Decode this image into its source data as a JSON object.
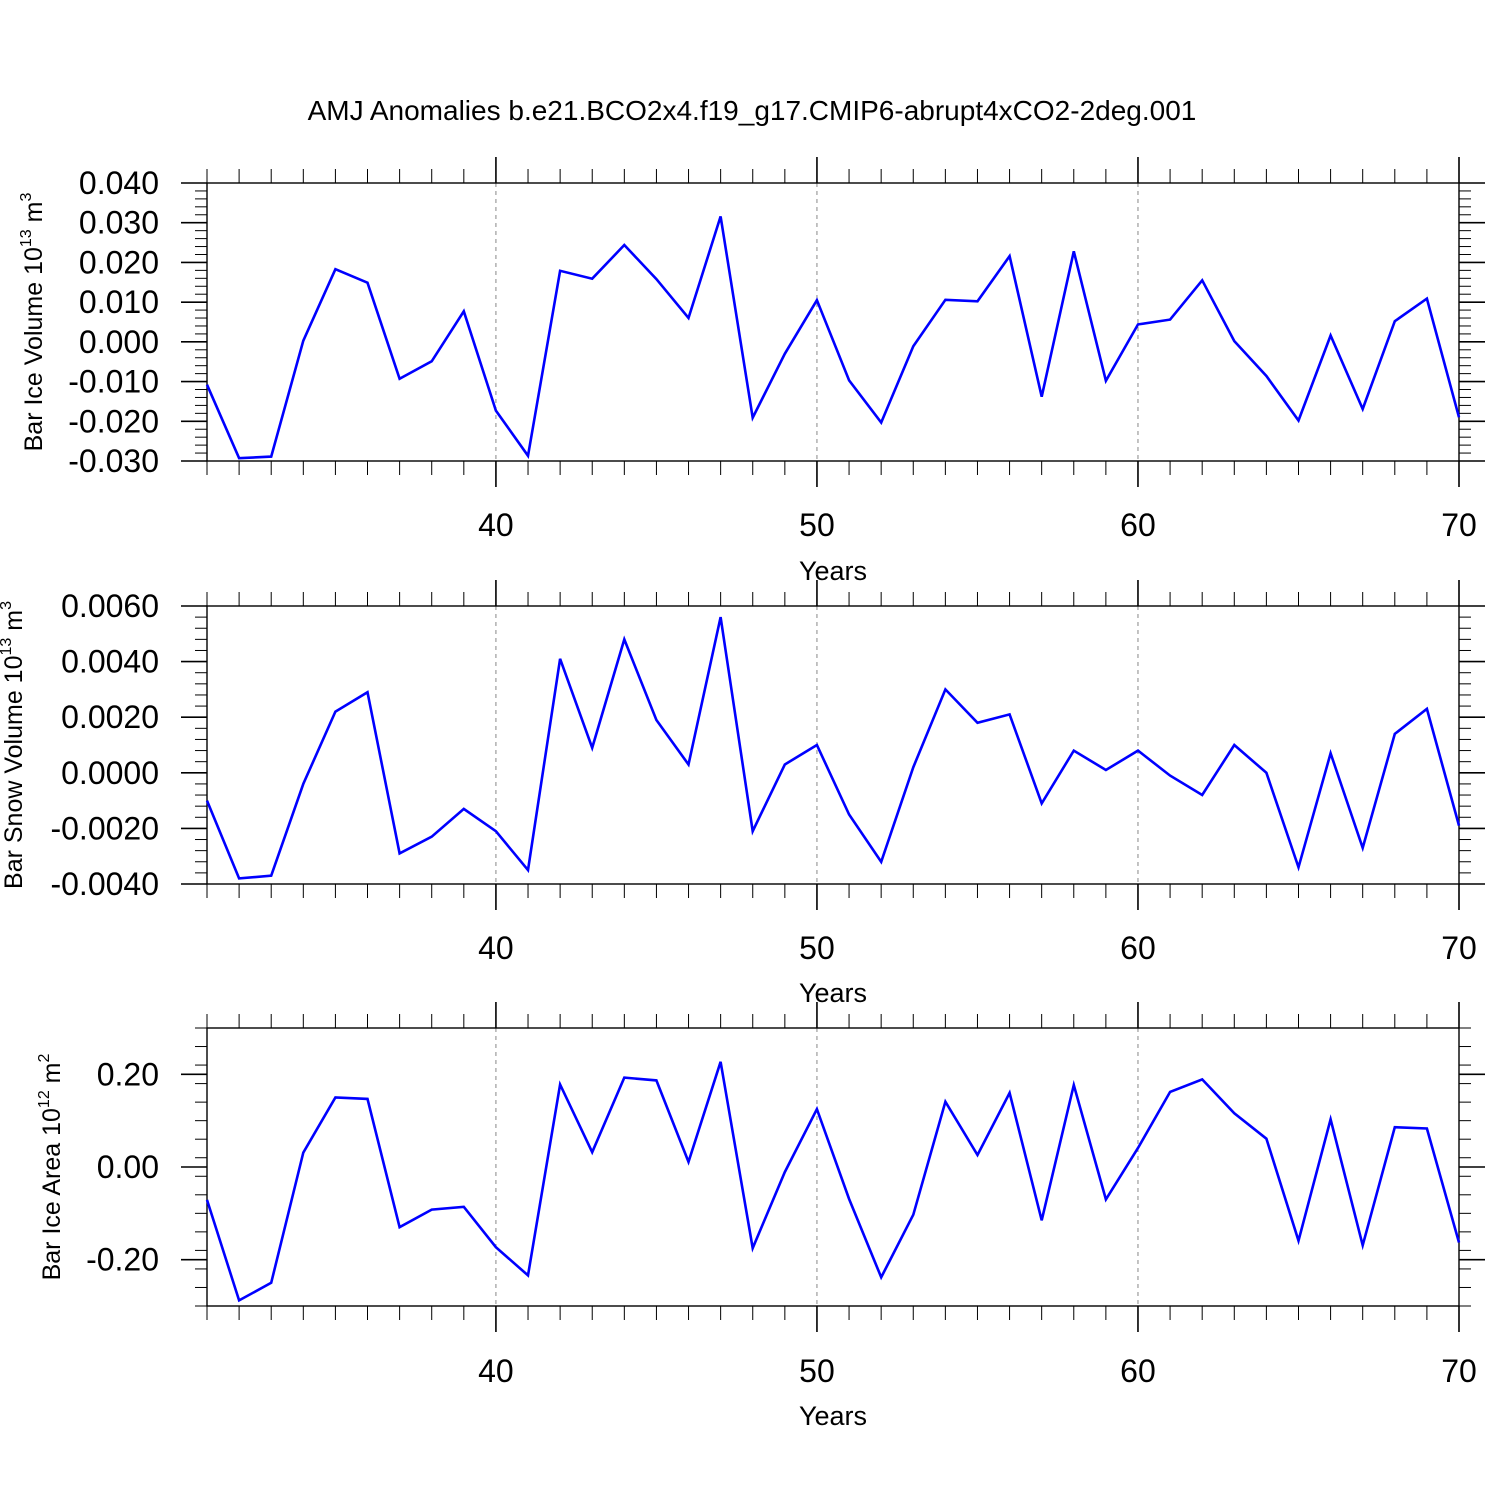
{
  "title": "AMJ Anomalies b.e21.BCO2x4.f19_g17.CMIP6-abrupt4xCO2-2deg.001",
  "line_color": "#0000ff",
  "chart_data": [
    {
      "type": "line",
      "ylabel": {
        "base": "Bar Ice Volume 10",
        "exp": "13",
        "unit": " m",
        "unit_exp": "3"
      },
      "xlabel": "Years",
      "xlim": [
        31,
        70
      ],
      "ylim": [
        -0.03,
        0.04
      ],
      "yticks": [
        -0.03,
        -0.02,
        -0.01,
        0.0,
        0.01,
        0.02,
        0.03,
        0.04
      ],
      "ytick_labels": [
        "-0.030",
        "-0.020",
        "-0.010",
        "0.000",
        "0.010",
        "0.020",
        "0.030",
        "0.040"
      ],
      "yminor_step": 0.002,
      "xticks": [
        40,
        50,
        60,
        70
      ],
      "x": [
        31,
        32,
        33,
        34,
        35,
        36,
        37,
        38,
        39,
        40,
        41,
        42,
        43,
        44,
        45,
        46,
        47,
        48,
        49,
        50,
        51,
        52,
        53,
        54,
        55,
        56,
        57,
        58,
        59,
        60,
        61,
        62,
        63,
        64,
        65,
        66,
        67,
        68,
        69,
        70
      ],
      "values": [
        -0.0108,
        -0.0293,
        -0.0289,
        0.0003,
        0.0183,
        0.0149,
        -0.0093,
        -0.0049,
        0.0077,
        -0.0173,
        -0.0287,
        0.0179,
        0.0159,
        0.0244,
        0.0158,
        0.006,
        0.0316,
        -0.0191,
        -0.003,
        0.0105,
        -0.0097,
        -0.0203,
        -0.0011,
        0.0106,
        0.0102,
        0.0216,
        -0.0138,
        0.0228,
        -0.0098,
        0.0044,
        0.0056,
        0.0155,
        0.0002,
        -0.0086,
        -0.0198,
        0.0016,
        -0.0169,
        0.0052,
        0.0109,
        -0.019
      ]
    },
    {
      "type": "line",
      "ylabel": {
        "base": "Bar Snow Volume 10",
        "exp": "13",
        "unit": " m",
        "unit_exp": "3"
      },
      "xlabel": "Years",
      "xlim": [
        31,
        70
      ],
      "ylim": [
        -0.004,
        0.006
      ],
      "yticks": [
        -0.004,
        -0.002,
        0.0,
        0.002,
        0.004,
        0.006
      ],
      "ytick_labels": [
        "-0.0040",
        "-0.0020",
        "0.0000",
        "0.0020",
        "0.0040",
        "0.0060"
      ],
      "yminor_step": 0.0004,
      "xticks": [
        40,
        50,
        60,
        70
      ],
      "x": [
        31,
        32,
        33,
        34,
        35,
        36,
        37,
        38,
        39,
        40,
        41,
        42,
        43,
        44,
        45,
        46,
        47,
        48,
        49,
        50,
        51,
        52,
        53,
        54,
        55,
        56,
        57,
        58,
        59,
        60,
        61,
        62,
        63,
        64,
        65,
        66,
        67,
        68,
        69,
        70
      ],
      "values": [
        -0.001,
        -0.0038,
        -0.0037,
        -0.0004,
        0.0022,
        0.0029,
        -0.0029,
        -0.0023,
        -0.0013,
        -0.0021,
        -0.0035,
        0.0041,
        0.0009,
        0.0048,
        0.0019,
        0.0003,
        0.0056,
        -0.0021,
        0.0003,
        0.001,
        -0.0015,
        -0.0032,
        0.0002,
        0.003,
        0.0018,
        0.0021,
        -0.0011,
        0.0008,
        0.0001,
        0.0008,
        -0.0001,
        -0.0008,
        0.001,
        0.0,
        -0.0034,
        0.0007,
        -0.0027,
        0.0014,
        0.0023,
        -0.0019
      ]
    },
    {
      "type": "line",
      "ylabel": {
        "base": "Bar Ice Area 10",
        "exp": "12",
        "unit": " m",
        "unit_exp": "2"
      },
      "xlabel": "Years",
      "xlim": [
        31,
        70
      ],
      "ylim": [
        -0.3,
        0.3
      ],
      "yticks": [
        -0.2,
        0.0,
        0.2
      ],
      "ytick_labels": [
        "-0.20",
        "0.00",
        "0.20"
      ],
      "yminor_step": 0.04,
      "xticks": [
        40,
        50,
        60,
        70
      ],
      "x": [
        31,
        32,
        33,
        34,
        35,
        36,
        37,
        38,
        39,
        40,
        41,
        42,
        43,
        44,
        45,
        46,
        47,
        48,
        49,
        50,
        51,
        52,
        53,
        54,
        55,
        56,
        57,
        58,
        59,
        60,
        61,
        62,
        63,
        64,
        65,
        66,
        67,
        68,
        69,
        70
      ],
      "values": [
        -0.071,
        -0.288,
        -0.25,
        0.031,
        0.15,
        0.147,
        -0.13,
        -0.092,
        -0.086,
        -0.173,
        -0.234,
        0.178,
        0.032,
        0.193,
        0.187,
        0.011,
        0.227,
        -0.175,
        -0.011,
        0.125,
        -0.069,
        -0.238,
        -0.103,
        0.141,
        0.026,
        0.16,
        -0.115,
        0.177,
        -0.07,
        0.041,
        0.162,
        0.189,
        0.116,
        0.061,
        -0.159,
        0.103,
        -0.169,
        0.086,
        0.083,
        -0.163
      ]
    }
  ]
}
